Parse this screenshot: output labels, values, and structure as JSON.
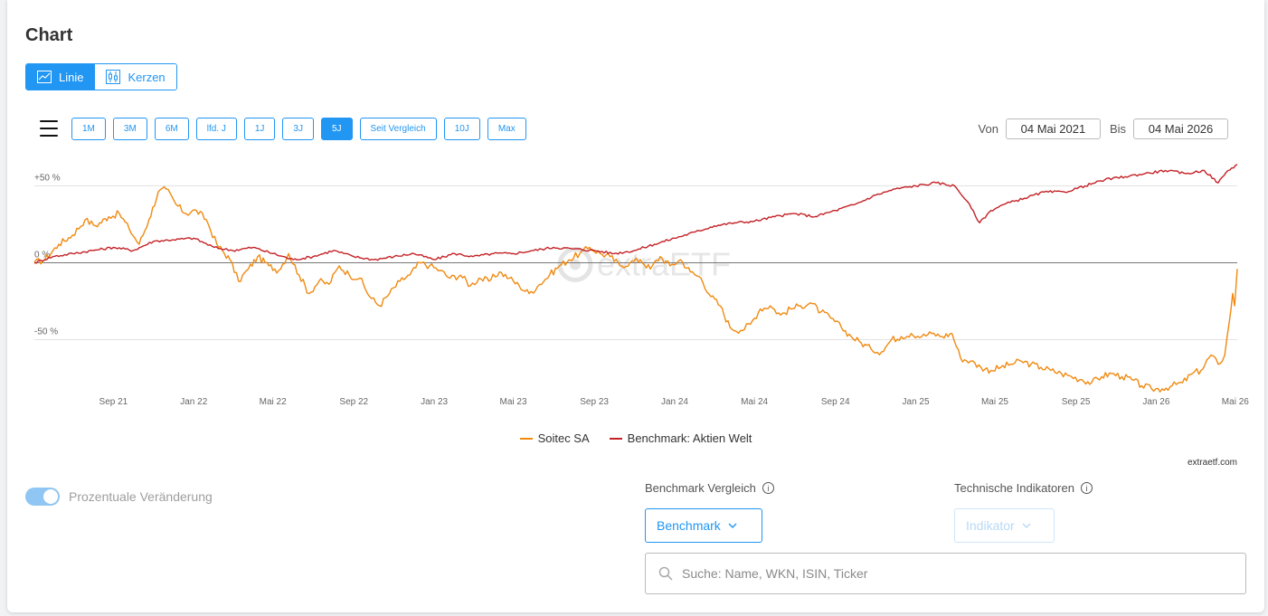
{
  "title": "Chart",
  "view_toggle": [
    {
      "label": "Linie",
      "icon": "line-chart-icon",
      "active": true
    },
    {
      "label": "Kerzen",
      "icon": "candlestick-icon",
      "active": false
    }
  ],
  "ranges": [
    {
      "label": "1M",
      "active": false
    },
    {
      "label": "3M",
      "active": false
    },
    {
      "label": "6M",
      "active": false
    },
    {
      "label": "lfd. J",
      "active": false
    },
    {
      "label": "1J",
      "active": false
    },
    {
      "label": "3J",
      "active": false
    },
    {
      "label": "5J",
      "active": true
    },
    {
      "label": "Seit Vergleich",
      "active": false
    },
    {
      "label": "10J",
      "active": false
    },
    {
      "label": "Max",
      "active": false
    }
  ],
  "date_range": {
    "from_label": "Von",
    "from": "04 Mai 2021",
    "to_label": "Bis",
    "to": "04 Mai 2026"
  },
  "chart_data": {
    "type": "line",
    "ylim": [
      -85,
      65
    ],
    "y_ticks": [
      {
        "value": 50,
        "label": "+50 %"
      },
      {
        "value": 0,
        "label": "0 %"
      },
      {
        "value": -50,
        "label": "-50 %"
      }
    ],
    "x_range": [
      "2021-05-04",
      "2026-05-04"
    ],
    "x_ticks": [
      {
        "date": "2021-09-01",
        "label": "Sep 21"
      },
      {
        "date": "2022-01-01",
        "label": "Jan 22"
      },
      {
        "date": "2022-05-01",
        "label": "Mai 22"
      },
      {
        "date": "2022-09-01",
        "label": "Sep 22"
      },
      {
        "date": "2023-01-01",
        "label": "Jan 23"
      },
      {
        "date": "2023-05-01",
        "label": "Mai 23"
      },
      {
        "date": "2023-09-01",
        "label": "Sep 23"
      },
      {
        "date": "2024-01-01",
        "label": "Jan 24"
      },
      {
        "date": "2024-05-01",
        "label": "Mai 24"
      },
      {
        "date": "2024-09-01",
        "label": "Sep 24"
      },
      {
        "date": "2025-01-01",
        "label": "Jan 25"
      },
      {
        "date": "2025-05-01",
        "label": "Mai 25"
      },
      {
        "date": "2025-09-01",
        "label": "Sep 25"
      },
      {
        "date": "2026-01-01",
        "label": "Jan 26"
      },
      {
        "date": "2026-05-01",
        "label": "Mai 26"
      }
    ],
    "grid": true,
    "legend_position": "bottom-center",
    "watermark": "extraETF",
    "series": [
      {
        "name": "Soitec SA",
        "color": "#f0890f",
        "points": [
          [
            "2021-05-04",
            0
          ],
          [
            "2021-05-20",
            2
          ],
          [
            "2021-06-10",
            12
          ],
          [
            "2021-07-01",
            18
          ],
          [
            "2021-07-20",
            28
          ],
          [
            "2021-08-05",
            24
          ],
          [
            "2021-08-25",
            30
          ],
          [
            "2021-09-10",
            32
          ],
          [
            "2021-09-25",
            22
          ],
          [
            "2021-10-10",
            12
          ],
          [
            "2021-10-25",
            28
          ],
          [
            "2021-11-08",
            46
          ],
          [
            "2021-11-20",
            48
          ],
          [
            "2021-12-05",
            38
          ],
          [
            "2021-12-20",
            32
          ],
          [
            "2022-01-05",
            34
          ],
          [
            "2022-01-20",
            28
          ],
          [
            "2022-02-05",
            12
          ],
          [
            "2022-02-25",
            2
          ],
          [
            "2022-03-10",
            -12
          ],
          [
            "2022-03-25",
            -4
          ],
          [
            "2022-04-08",
            4
          ],
          [
            "2022-04-25",
            -2
          ],
          [
            "2022-05-10",
            -5
          ],
          [
            "2022-05-25",
            6
          ],
          [
            "2022-06-10",
            -8
          ],
          [
            "2022-06-25",
            -20
          ],
          [
            "2022-07-10",
            -12
          ],
          [
            "2022-07-25",
            -14
          ],
          [
            "2022-08-10",
            -2
          ],
          [
            "2022-08-25",
            -8
          ],
          [
            "2022-09-10",
            -10
          ],
          [
            "2022-09-25",
            -22
          ],
          [
            "2022-10-10",
            -28
          ],
          [
            "2022-10-25",
            -20
          ],
          [
            "2022-11-10",
            -12
          ],
          [
            "2022-11-25",
            -8
          ],
          [
            "2022-12-10",
            0
          ],
          [
            "2022-12-25",
            -2
          ],
          [
            "2023-01-10",
            -5
          ],
          [
            "2023-01-25",
            -10
          ],
          [
            "2023-02-10",
            -8
          ],
          [
            "2023-02-25",
            -15
          ],
          [
            "2023-03-10",
            -10
          ],
          [
            "2023-03-25",
            -12
          ],
          [
            "2023-04-10",
            -6
          ],
          [
            "2023-04-25",
            -10
          ],
          [
            "2023-05-10",
            -15
          ],
          [
            "2023-05-25",
            -20
          ],
          [
            "2023-06-10",
            -14
          ],
          [
            "2023-06-25",
            -8
          ],
          [
            "2023-07-10",
            -2
          ],
          [
            "2023-07-25",
            2
          ],
          [
            "2023-08-10",
            6
          ],
          [
            "2023-08-25",
            10
          ],
          [
            "2023-09-10",
            6
          ],
          [
            "2023-09-25",
            4
          ],
          [
            "2023-10-10",
            -2
          ],
          [
            "2023-10-25",
            0
          ],
          [
            "2023-11-10",
            2
          ],
          [
            "2023-11-25",
            -4
          ],
          [
            "2023-12-10",
            4
          ],
          [
            "2023-12-25",
            -2
          ],
          [
            "2024-01-10",
            2
          ],
          [
            "2024-01-25",
            -6
          ],
          [
            "2024-02-10",
            -10
          ],
          [
            "2024-02-25",
            -22
          ],
          [
            "2024-03-10",
            -28
          ],
          [
            "2024-03-25",
            -42
          ],
          [
            "2024-04-10",
            -44
          ],
          [
            "2024-04-25",
            -40
          ],
          [
            "2024-05-10",
            -30
          ],
          [
            "2024-05-25",
            -28
          ],
          [
            "2024-06-10",
            -34
          ],
          [
            "2024-06-25",
            -30
          ],
          [
            "2024-07-10",
            -28
          ],
          [
            "2024-07-25",
            -26
          ],
          [
            "2024-08-10",
            -32
          ],
          [
            "2024-08-25",
            -36
          ],
          [
            "2024-09-10",
            -42
          ],
          [
            "2024-09-25",
            -48
          ],
          [
            "2024-10-10",
            -52
          ],
          [
            "2024-10-25",
            -56
          ],
          [
            "2024-11-10",
            -58
          ],
          [
            "2024-11-25",
            -50
          ],
          [
            "2024-12-10",
            -48
          ],
          [
            "2024-12-25",
            -46
          ],
          [
            "2025-01-10",
            -48
          ],
          [
            "2025-01-25",
            -46
          ],
          [
            "2025-02-10",
            -48
          ],
          [
            "2025-02-25",
            -46
          ],
          [
            "2025-03-10",
            -62
          ],
          [
            "2025-03-25",
            -64
          ],
          [
            "2025-04-10",
            -68
          ],
          [
            "2025-04-25",
            -70
          ],
          [
            "2025-05-10",
            -68
          ],
          [
            "2025-05-25",
            -66
          ],
          [
            "2025-06-10",
            -64
          ],
          [
            "2025-06-25",
            -66
          ],
          [
            "2025-07-10",
            -68
          ],
          [
            "2025-07-25",
            -70
          ],
          [
            "2025-08-10",
            -72
          ],
          [
            "2025-08-25",
            -74
          ],
          [
            "2025-09-10",
            -76
          ],
          [
            "2025-09-25",
            -78
          ],
          [
            "2025-10-10",
            -74
          ],
          [
            "2025-10-25",
            -72
          ],
          [
            "2025-11-10",
            -74
          ],
          [
            "2025-11-25",
            -76
          ],
          [
            "2025-12-10",
            -80
          ],
          [
            "2025-12-25",
            -82
          ],
          [
            "2026-01-10",
            -82
          ],
          [
            "2026-01-25",
            -80
          ],
          [
            "2026-02-10",
            -78
          ],
          [
            "2026-02-25",
            -72
          ],
          [
            "2026-03-10",
            -70
          ],
          [
            "2026-03-25",
            -60
          ],
          [
            "2026-04-05",
            -66
          ],
          [
            "2026-04-15",
            -60
          ],
          [
            "2026-04-22",
            -38
          ],
          [
            "2026-04-27",
            -20
          ],
          [
            "2026-04-30",
            -28
          ],
          [
            "2026-05-04",
            -4
          ]
        ]
      },
      {
        "name": "Benchmark: Aktien Welt",
        "color": "#c32126",
        "points": [
          [
            "2021-05-04",
            0
          ],
          [
            "2021-06-01",
            4
          ],
          [
            "2021-07-01",
            6
          ],
          [
            "2021-08-01",
            8
          ],
          [
            "2021-09-01",
            10
          ],
          [
            "2021-10-01",
            8
          ],
          [
            "2021-11-01",
            14
          ],
          [
            "2021-12-01",
            15
          ],
          [
            "2022-01-01",
            16
          ],
          [
            "2022-02-01",
            10
          ],
          [
            "2022-03-01",
            8
          ],
          [
            "2022-04-01",
            10
          ],
          [
            "2022-05-01",
            6
          ],
          [
            "2022-06-01",
            2
          ],
          [
            "2022-07-01",
            4
          ],
          [
            "2022-08-01",
            8
          ],
          [
            "2022-09-01",
            4
          ],
          [
            "2022-10-01",
            2
          ],
          [
            "2022-11-01",
            4
          ],
          [
            "2022-12-01",
            6
          ],
          [
            "2023-01-01",
            2
          ],
          [
            "2023-02-01",
            6
          ],
          [
            "2023-03-01",
            4
          ],
          [
            "2023-04-01",
            6
          ],
          [
            "2023-05-01",
            6
          ],
          [
            "2023-06-01",
            8
          ],
          [
            "2023-07-01",
            10
          ],
          [
            "2023-08-01",
            9
          ],
          [
            "2023-09-01",
            8
          ],
          [
            "2023-10-01",
            6
          ],
          [
            "2023-11-01",
            8
          ],
          [
            "2023-12-01",
            12
          ],
          [
            "2024-01-01",
            16
          ],
          [
            "2024-02-01",
            20
          ],
          [
            "2024-03-01",
            24
          ],
          [
            "2024-04-01",
            26
          ],
          [
            "2024-05-01",
            27
          ],
          [
            "2024-06-01",
            30
          ],
          [
            "2024-07-01",
            32
          ],
          [
            "2024-08-01",
            30
          ],
          [
            "2024-09-01",
            34
          ],
          [
            "2024-10-01",
            38
          ],
          [
            "2024-11-01",
            44
          ],
          [
            "2024-12-01",
            48
          ],
          [
            "2025-01-01",
            50
          ],
          [
            "2025-02-01",
            52
          ],
          [
            "2025-03-01",
            50
          ],
          [
            "2025-03-20",
            40
          ],
          [
            "2025-04-08",
            26
          ],
          [
            "2025-04-25",
            34
          ],
          [
            "2025-05-15",
            38
          ],
          [
            "2025-06-15",
            42
          ],
          [
            "2025-07-15",
            46
          ],
          [
            "2025-08-15",
            46
          ],
          [
            "2025-09-15",
            50
          ],
          [
            "2025-10-15",
            54
          ],
          [
            "2025-11-15",
            56
          ],
          [
            "2025-12-15",
            58
          ],
          [
            "2026-01-15",
            60
          ],
          [
            "2026-02-15",
            58
          ],
          [
            "2026-03-15",
            60
          ],
          [
            "2026-04-05",
            52
          ],
          [
            "2026-04-20",
            60
          ],
          [
            "2026-05-04",
            64
          ]
        ]
      }
    ]
  },
  "credit": "extraetf.com",
  "toggle": {
    "label": "Prozentuale Veränderung",
    "on": true
  },
  "benchmark_section": {
    "label": "Benchmark Vergleich",
    "info_icon": "info-icon",
    "dropdown_label": "Benchmark"
  },
  "indicators_section": {
    "label": "Technische Indikatoren",
    "info_icon": "info-icon",
    "dropdown_label": "Indikator"
  },
  "search": {
    "placeholder": "Suche: Name, WKN, ISIN, Ticker",
    "icon": "search-icon"
  }
}
